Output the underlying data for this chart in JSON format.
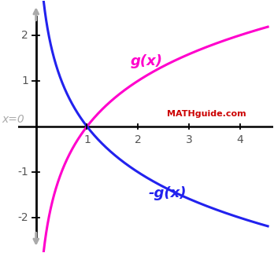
{
  "xlim": [
    -0.35,
    4.65
  ],
  "ylim": [
    -2.75,
    2.75
  ],
  "xticks": [
    1,
    2,
    3,
    4
  ],
  "yticks": [
    -2,
    -1,
    1,
    2
  ],
  "gx_color": "#FF00CC",
  "neg_gx_color": "#2222EE",
  "axis_color": "#000000",
  "arrow_color": "#AAAAAA",
  "background_color": "#FFFFFF",
  "label_gx": "g(x)",
  "label_neg_gx": "-g(x)",
  "label_x0": "x=0",
  "watermark": "MATHguide.com",
  "watermark_color": "#CC0000",
  "tick_color": "#555555",
  "x_start": 0.008,
  "x_end": 4.55,
  "log_base": 2.0
}
